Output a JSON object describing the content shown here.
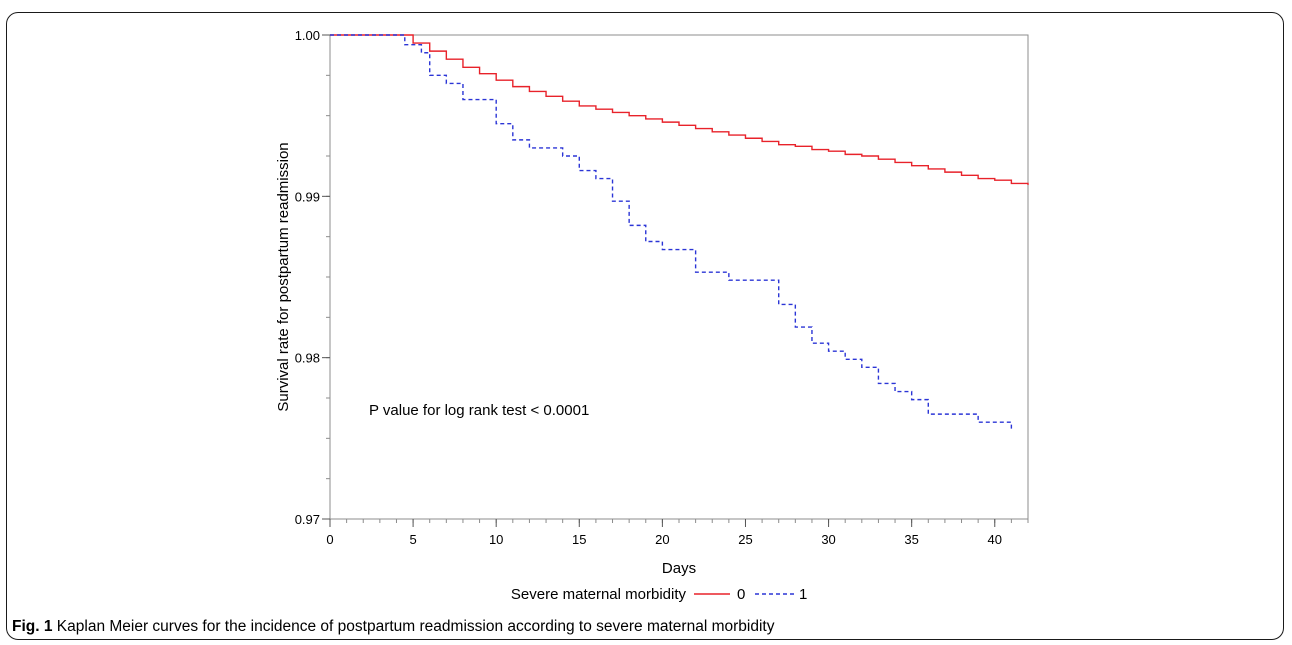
{
  "figure": {
    "caption_label": "Fig. 1",
    "caption_text": "Kaplan Meier curves for the incidence of postpartum readmission according to severe maternal morbidity"
  },
  "chart_data": {
    "type": "line",
    "title": "",
    "xlabel": "Days",
    "ylabel": "Survival rate for postpartum readmission",
    "xlim": [
      0,
      42
    ],
    "ylim": [
      0.97,
      1.0
    ],
    "x_ticks": [
      0,
      5,
      10,
      15,
      20,
      25,
      30,
      35,
      40
    ],
    "x_tick_labels": [
      "0",
      "5",
      "10",
      "15",
      "20",
      "25",
      "30",
      "35",
      "40"
    ],
    "y_ticks": [
      0.97,
      0.98,
      0.99,
      1.0
    ],
    "y_tick_labels": [
      "0.97",
      "0.98",
      "0.99",
      "1.00"
    ],
    "annotation": "P value for log rank test < 0.0001",
    "legend": {
      "title": "Severe maternal morbidity",
      "placement": "bottom"
    },
    "colors": {
      "series_0": "#e8222a",
      "series_1": "#2b35d6"
    },
    "series": [
      {
        "name": "0",
        "style": "solid step",
        "points": [
          [
            0,
            1.0
          ],
          [
            4,
            1.0
          ],
          [
            5,
            0.9995
          ],
          [
            6,
            0.999
          ],
          [
            7,
            0.9985
          ],
          [
            8,
            0.998
          ],
          [
            9,
            0.9976
          ],
          [
            10,
            0.9972
          ],
          [
            11,
            0.9968
          ],
          [
            12,
            0.9965
          ],
          [
            13,
            0.9962
          ],
          [
            14,
            0.9959
          ],
          [
            15,
            0.9956
          ],
          [
            16,
            0.9954
          ],
          [
            17,
            0.9952
          ],
          [
            18,
            0.995
          ],
          [
            19,
            0.9948
          ],
          [
            20,
            0.9946
          ],
          [
            21,
            0.9944
          ],
          [
            22,
            0.9942
          ],
          [
            23,
            0.994
          ],
          [
            24,
            0.9938
          ],
          [
            25,
            0.9936
          ],
          [
            26,
            0.9934
          ],
          [
            27,
            0.9932
          ],
          [
            28,
            0.9931
          ],
          [
            29,
            0.9929
          ],
          [
            30,
            0.9928
          ],
          [
            31,
            0.9926
          ],
          [
            32,
            0.9925
          ],
          [
            33,
            0.9923
          ],
          [
            34,
            0.9921
          ],
          [
            35,
            0.9919
          ],
          [
            36,
            0.9917
          ],
          [
            37,
            0.9915
          ],
          [
            38,
            0.9913
          ],
          [
            39,
            0.9911
          ],
          [
            40,
            0.991
          ],
          [
            41,
            0.9908
          ],
          [
            42,
            0.9907
          ]
        ]
      },
      {
        "name": "1",
        "style": "dashed step",
        "points": [
          [
            0,
            1.0
          ],
          [
            4,
            1.0
          ],
          [
            4.5,
            0.9994
          ],
          [
            5.5,
            0.9989
          ],
          [
            6,
            0.9975
          ],
          [
            7,
            0.997
          ],
          [
            8,
            0.996
          ],
          [
            10,
            0.9945
          ],
          [
            11,
            0.9935
          ],
          [
            12,
            0.993
          ],
          [
            14,
            0.9925
          ],
          [
            15,
            0.9916
          ],
          [
            16,
            0.9911
          ],
          [
            17,
            0.9897
          ],
          [
            18,
            0.9882
          ],
          [
            19,
            0.9872
          ],
          [
            20,
            0.9867
          ],
          [
            22,
            0.9853
          ],
          [
            24,
            0.9848
          ],
          [
            27,
            0.9833
          ],
          [
            28,
            0.9819
          ],
          [
            29,
            0.9809
          ],
          [
            30,
            0.9804
          ],
          [
            31,
            0.9799
          ],
          [
            32,
            0.9794
          ],
          [
            33,
            0.9784
          ],
          [
            34,
            0.9779
          ],
          [
            35,
            0.9774
          ],
          [
            36,
            0.9765
          ],
          [
            39,
            0.976
          ],
          [
            41,
            0.9755
          ]
        ]
      }
    ]
  }
}
